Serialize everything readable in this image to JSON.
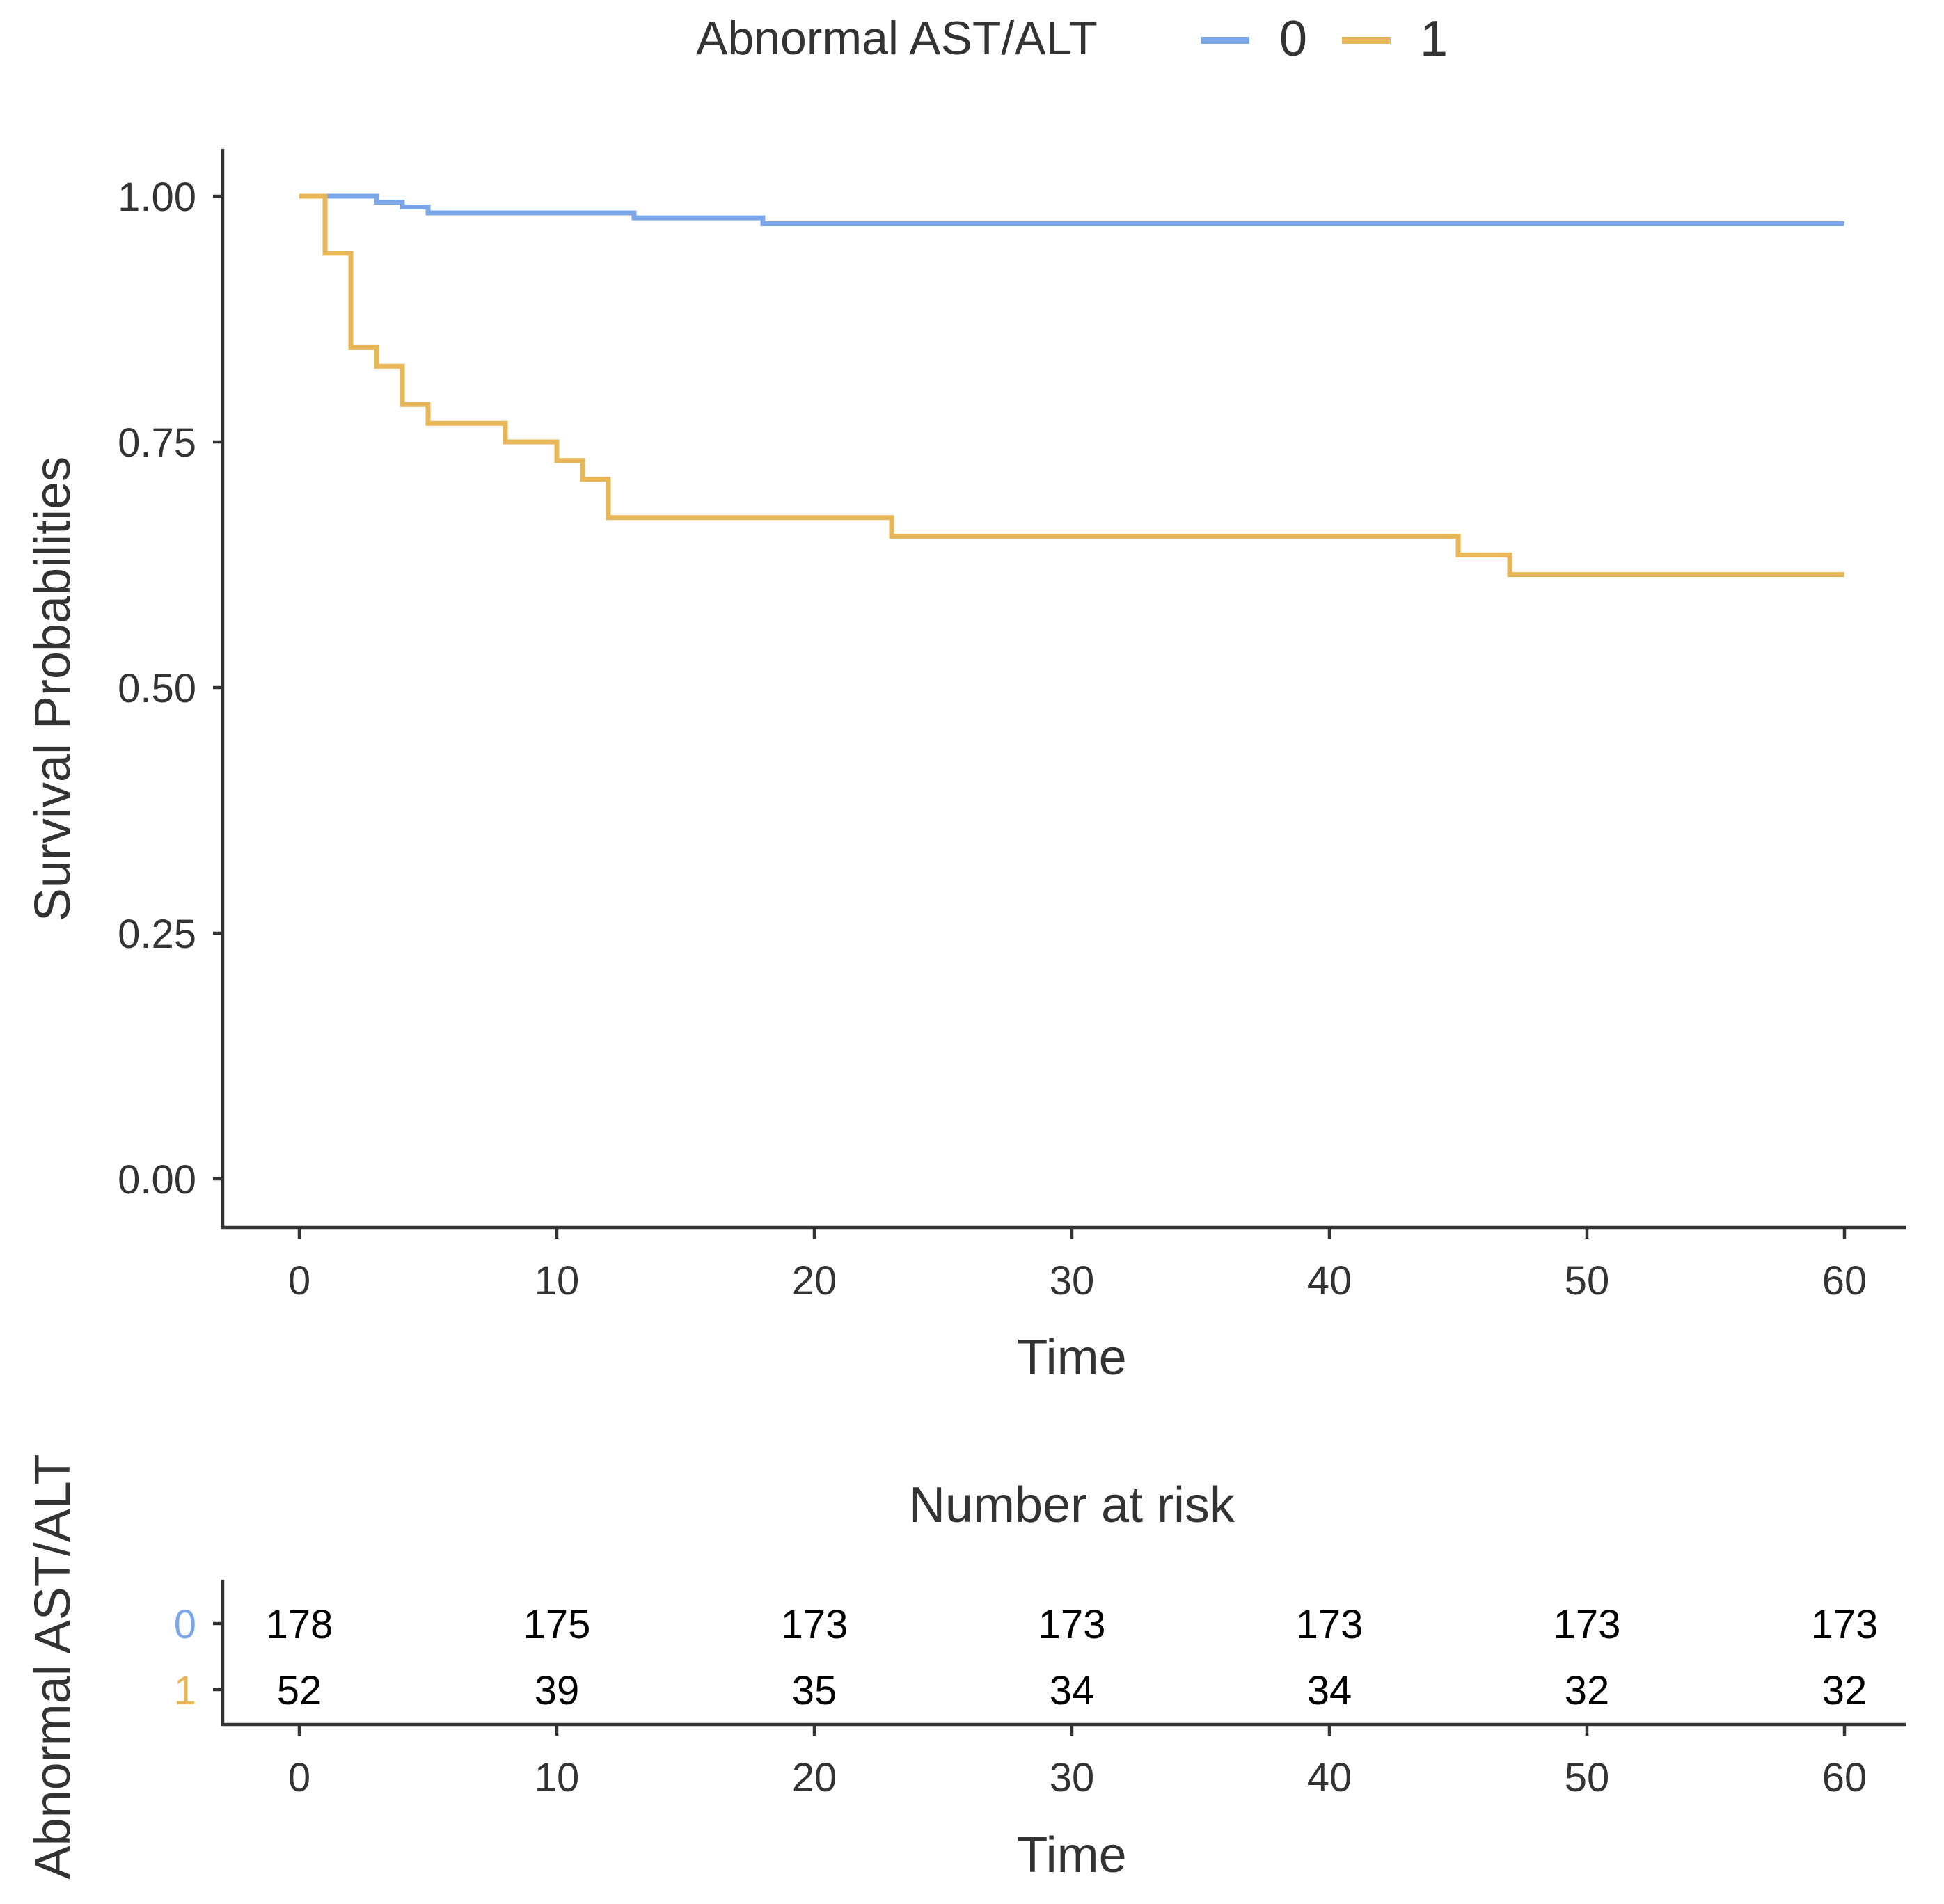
{
  "chart_data": [
    {
      "type": "line",
      "subtype": "kaplan-meier",
      "xlabel": "Time",
      "ylabel": "Survival Probabilities",
      "xlim": [
        0,
        60
      ],
      "ylim": [
        0,
        1
      ],
      "xticks": [
        0,
        10,
        20,
        30,
        40,
        50,
        60
      ],
      "yticks": [
        0,
        0.25,
        0.5,
        0.75,
        1
      ],
      "ytick_labels": [
        "0.00",
        "0.25",
        "0.50",
        "0.75",
        "1.00"
      ],
      "xtick_labels": [
        "0",
        "10",
        "20",
        "30",
        "40",
        "50",
        "60"
      ],
      "grid": false,
      "legend": {
        "title": "Abnormal AST/ALT",
        "position": "top",
        "entries": [
          "0",
          "1"
        ]
      },
      "series": [
        {
          "name": "0",
          "color": "#7BA6E8",
          "steps": [
            [
              0,
              1.0
            ],
            [
              3,
              0.994
            ],
            [
              4,
              0.989
            ],
            [
              5,
              0.983
            ],
            [
              13,
              0.978
            ],
            [
              18,
              0.972
            ],
            [
              60,
              0.972
            ]
          ]
        },
        {
          "name": "1",
          "color": "#E7B656",
          "steps": [
            [
              0,
              1.0
            ],
            [
              1,
              0.942
            ],
            [
              2,
              0.846
            ],
            [
              3,
              0.827
            ],
            [
              4,
              0.788
            ],
            [
              5,
              0.769
            ],
            [
              8,
              0.75
            ],
            [
              10,
              0.731
            ],
            [
              11,
              0.712
            ],
            [
              12,
              0.673
            ],
            [
              23,
              0.654
            ],
            [
              45,
              0.635
            ],
            [
              47,
              0.615
            ],
            [
              60,
              0.615
            ]
          ]
        }
      ]
    },
    {
      "type": "table",
      "title": "Number at risk",
      "xlabel": "Time",
      "ylabel": "Abnormal AST/ALT",
      "xticks": [
        0,
        10,
        20,
        30,
        40,
        50,
        60
      ],
      "xtick_labels": [
        "0",
        "10",
        "20",
        "30",
        "40",
        "50",
        "60"
      ],
      "rows": [
        {
          "name": "0",
          "color": "#7BA6E8",
          "values": [
            "178",
            "175",
            "173",
            "173",
            "173",
            "173",
            "173"
          ]
        },
        {
          "name": "1",
          "color": "#E7B656",
          "values": [
            "52",
            "39",
            "35",
            "34",
            "34",
            "32",
            "32"
          ]
        }
      ]
    }
  ]
}
